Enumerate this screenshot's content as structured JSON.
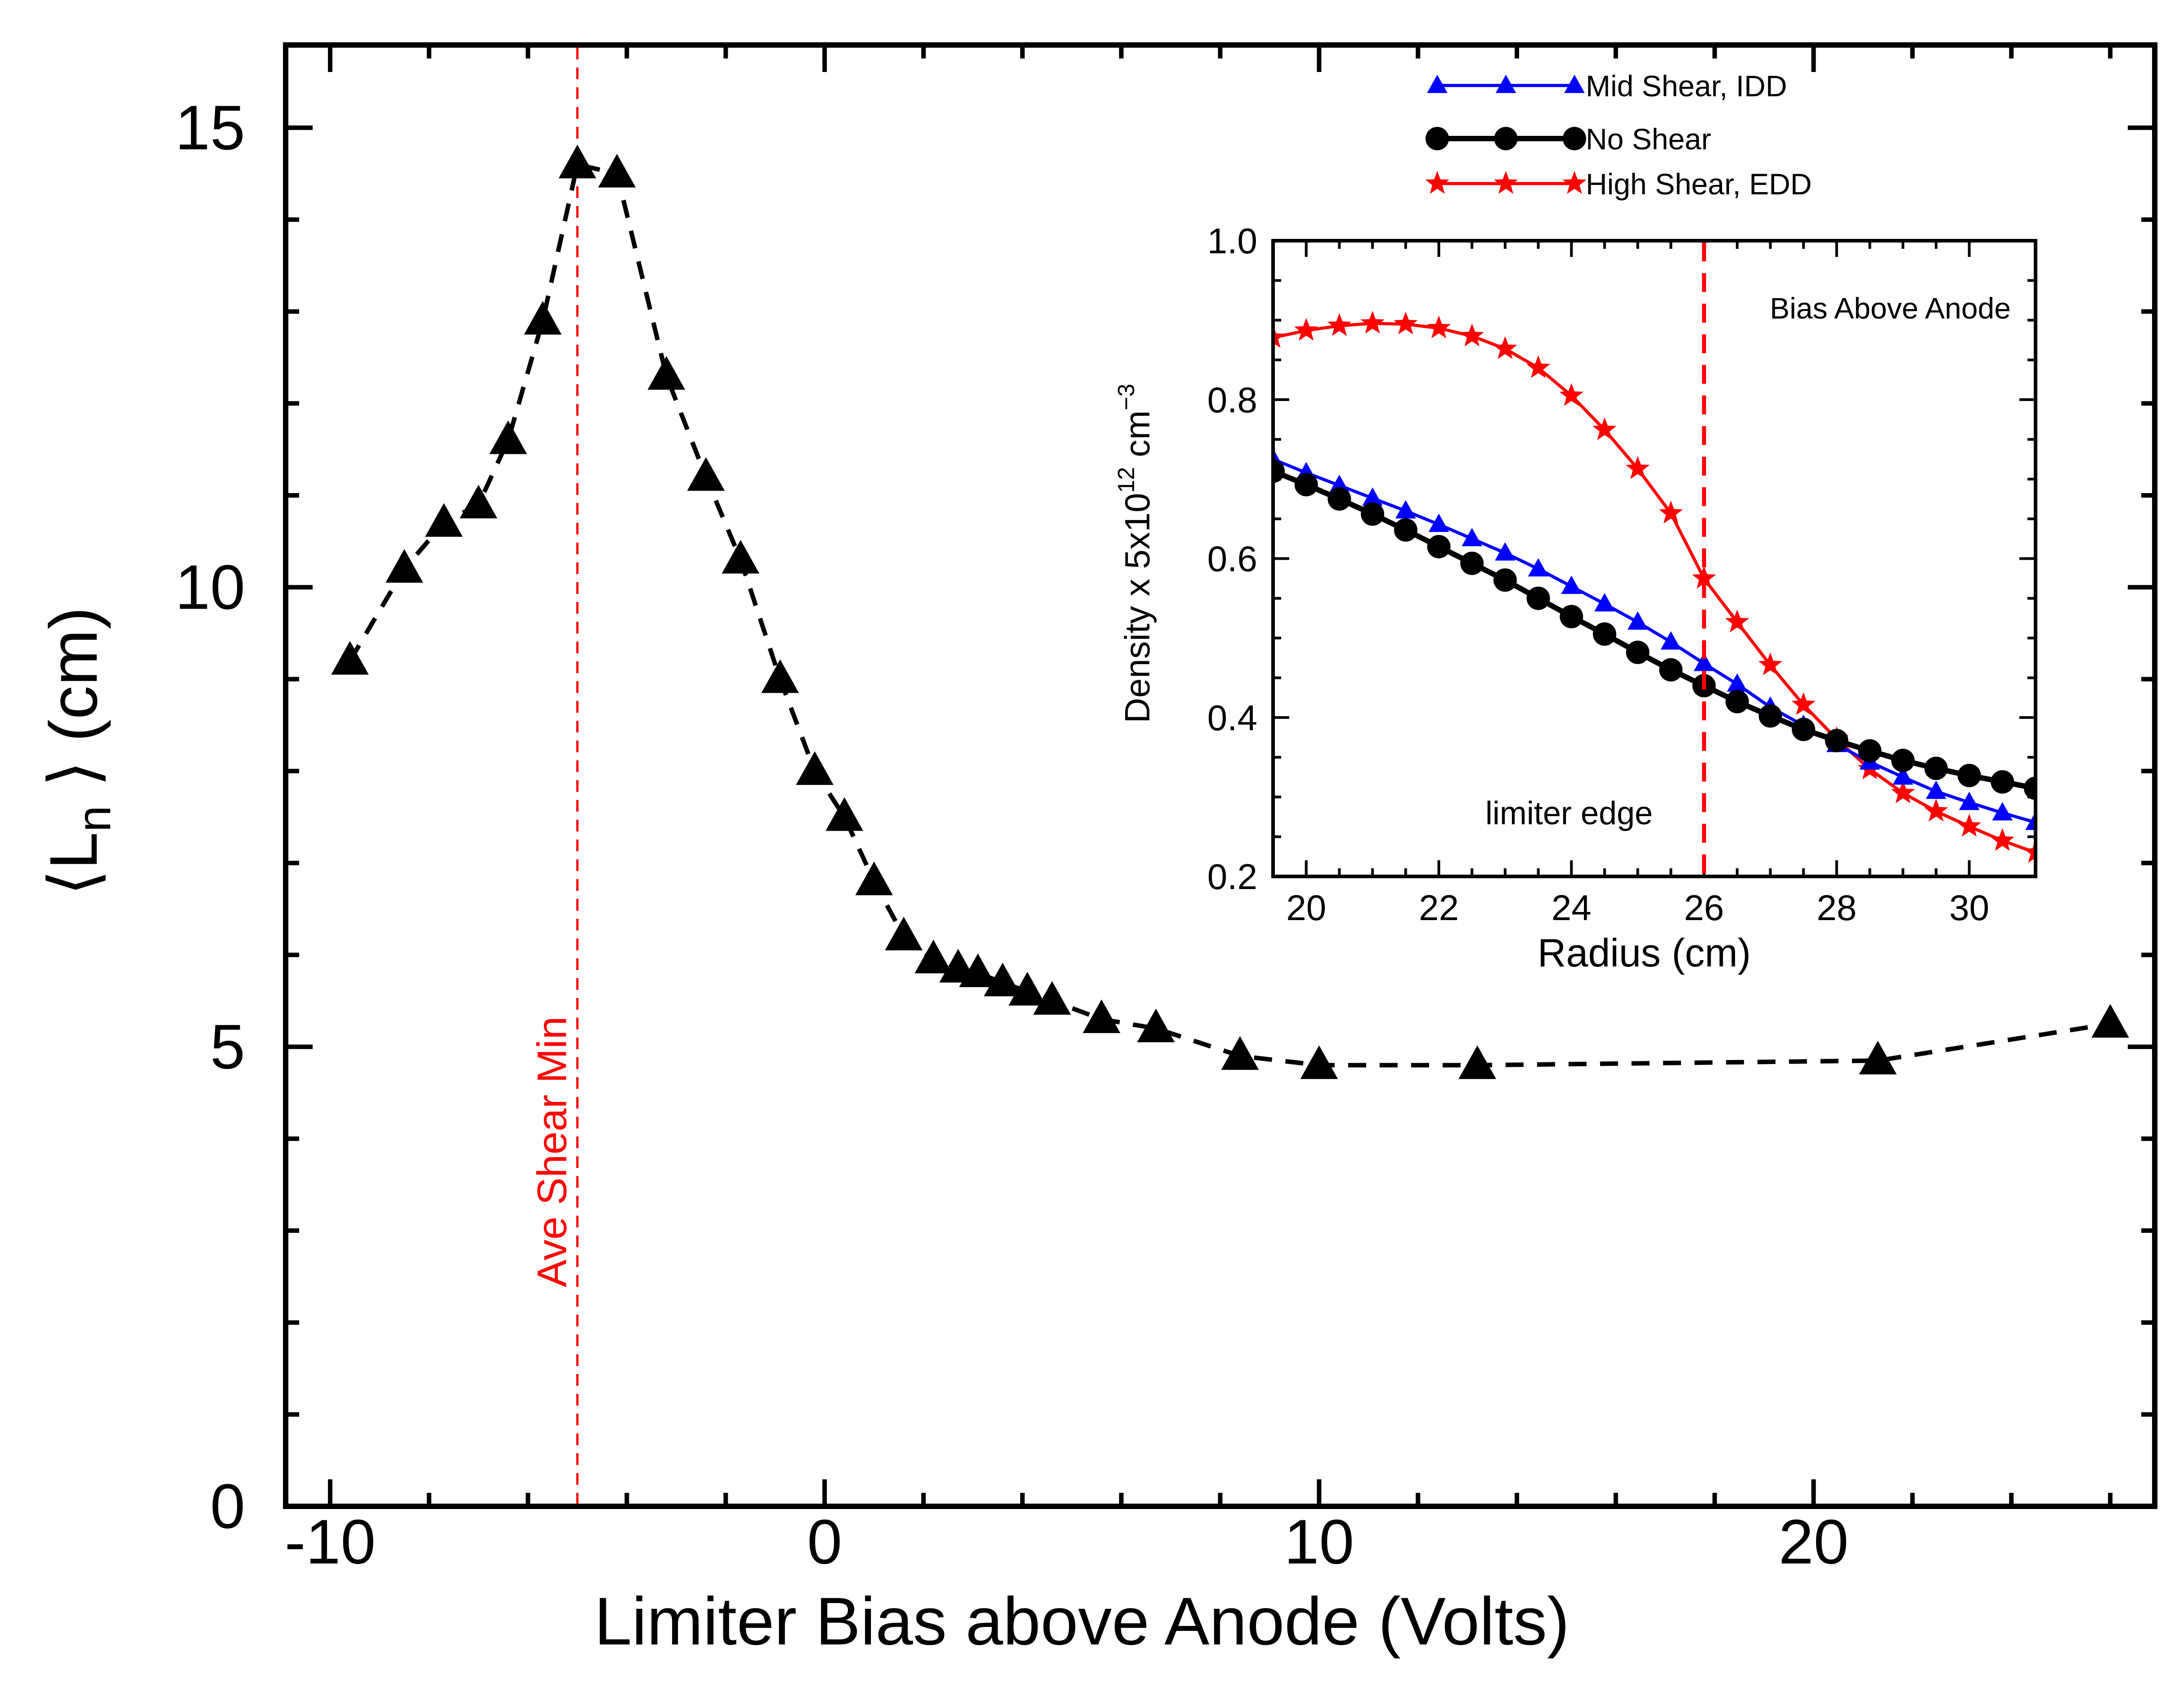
{
  "chart_data": [
    {
      "type": "line",
      "xlabel": "Limiter Bias above Anode (Volts)",
      "ylabel_prefix": "⟨L",
      "ylabel_sub": "n",
      "ylabel_suffix": " ⟩ (cm)",
      "xlim": [
        -10.9,
        26.9
      ],
      "ylim": [
        0,
        15.9
      ],
      "xticks": [
        -10,
        0,
        10,
        20
      ],
      "yticks": [
        0,
        5,
        10,
        15
      ],
      "xtick_labels": [
        "-10",
        "0",
        "10",
        "20"
      ],
      "ytick_labels": [
        "0",
        "5",
        "10",
        "15"
      ],
      "line_style": "dashed",
      "marker": "triangle",
      "color": "#000000",
      "grid": false,
      "x": [
        -9.6,
        -8.5,
        -7.7,
        -7.0,
        -6.4,
        -5.7,
        -5.0,
        -4.2,
        -3.2,
        -2.4,
        -1.7,
        -0.9,
        -0.2,
        0.4,
        1.0,
        1.6,
        2.2,
        2.7,
        3.1,
        3.6,
        4.1,
        4.6,
        5.6,
        6.7,
        8.4,
        10.0,
        13.2,
        21.3,
        26.0
      ],
      "y": [
        9.2,
        10.2,
        10.7,
        10.9,
        11.6,
        12.9,
        14.6,
        14.5,
        12.3,
        11.2,
        10.3,
        9.0,
        8.0,
        7.5,
        6.8,
        6.2,
        5.95,
        5.85,
        5.8,
        5.7,
        5.6,
        5.5,
        5.3,
        5.2,
        4.9,
        4.8,
        4.8,
        4.85,
        5.25
      ],
      "annotation": {
        "text": "Ave Shear Min",
        "x": -5.0,
        "color": "#ff0000"
      }
    },
    {
      "type": "line",
      "xlabel": "Radius (cm)",
      "ylabel_prefix": "Density x 5x10",
      "ylabel_sup1": "12",
      "ylabel_mid": " cm",
      "ylabel_sup2": "−3",
      "xlim": [
        19.5,
        31.0
      ],
      "ylim": [
        0.2,
        1.0
      ],
      "xticks": [
        20,
        22,
        24,
        26,
        28,
        30
      ],
      "yticks": [
        0.2,
        0.4,
        0.6,
        0.8,
        1.0
      ],
      "xtick_labels": [
        "20",
        "22",
        "24",
        "26",
        "28",
        "30"
      ],
      "ytick_labels": [
        "0.2",
        "0.4",
        "0.6",
        "0.8",
        "1.0"
      ],
      "legend_position": "top-right (outside inset)",
      "annotations": [
        {
          "text": "Bias Above Anode",
          "position": "top-right"
        },
        {
          "text": "limiter edge",
          "position": "bottom"
        }
      ],
      "vline": {
        "x": 26.0,
        "color": "#ff0000",
        "style": "dashed"
      },
      "series": [
        {
          "name": "Mid Shear, IDD",
          "color": "#0000ff",
          "marker": "triangle",
          "x": [
            19.5,
            20.0,
            20.5,
            21.0,
            21.5,
            22.0,
            22.5,
            23.0,
            23.5,
            24.0,
            24.5,
            25.0,
            25.5,
            26.0,
            26.5,
            27.0,
            27.5,
            28.0,
            28.5,
            29.0,
            29.5,
            30.0,
            30.5,
            31.0
          ],
          "y": [
            0.725,
            0.708,
            0.692,
            0.676,
            0.66,
            0.643,
            0.625,
            0.607,
            0.587,
            0.565,
            0.543,
            0.52,
            0.495,
            0.468,
            0.442,
            0.413,
            0.39,
            0.366,
            0.344,
            0.325,
            0.307,
            0.293,
            0.28,
            0.268
          ]
        },
        {
          "name": "No Shear",
          "color": "#000000",
          "marker": "circle",
          "x": [
            19.5,
            20.0,
            20.5,
            21.0,
            21.5,
            22.0,
            22.5,
            23.0,
            23.5,
            24.0,
            24.5,
            25.0,
            25.5,
            26.0,
            26.5,
            27.0,
            27.5,
            28.0,
            28.5,
            29.0,
            29.5,
            30.0,
            30.5,
            31.0
          ],
          "y": [
            0.71,
            0.693,
            0.675,
            0.656,
            0.636,
            0.615,
            0.594,
            0.573,
            0.55,
            0.527,
            0.505,
            0.482,
            0.46,
            0.44,
            0.42,
            0.402,
            0.385,
            0.371,
            0.358,
            0.346,
            0.336,
            0.327,
            0.319,
            0.311
          ]
        },
        {
          "name": "High Shear, EDD",
          "color": "#ff0000",
          "marker": "star",
          "x": [
            19.5,
            20.0,
            20.5,
            21.0,
            21.5,
            22.0,
            22.5,
            23.0,
            23.5,
            24.0,
            24.5,
            25.0,
            25.5,
            26.0,
            26.5,
            27.0,
            27.5,
            28.0,
            28.5,
            29.0,
            29.5,
            30.0,
            30.5,
            31.0
          ],
          "y": [
            0.878,
            0.887,
            0.893,
            0.896,
            0.895,
            0.89,
            0.88,
            0.864,
            0.84,
            0.805,
            0.762,
            0.713,
            0.657,
            0.575,
            0.52,
            0.466,
            0.416,
            0.373,
            0.335,
            0.305,
            0.282,
            0.263,
            0.245,
            0.23
          ]
        }
      ]
    }
  ]
}
